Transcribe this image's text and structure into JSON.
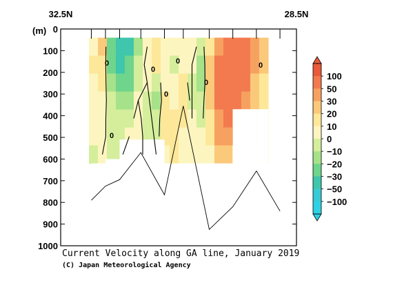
{
  "chart_data": {
    "type": "heatmap",
    "title": "Current Velocity along GA line, January 2019",
    "credit": "(C) Japan Meteorological Agency",
    "x_left_label": "32.5N",
    "x_right_label": "28.5N",
    "y_unit_label": "(m)",
    "ylim": [
      0,
      1000
    ],
    "y_inverted": true,
    "y_ticks": [
      "0",
      "100",
      "200",
      "300",
      "400",
      "500",
      "600",
      "700",
      "800",
      "900",
      "1000"
    ],
    "colorbar": {
      "labels": [
        "100",
        "50",
        "30",
        "20",
        "10",
        "0",
        "−10",
        "−20",
        "−30",
        "−50",
        "−100"
      ],
      "colors": [
        "#e85a3a",
        "#f27a4e",
        "#f7a161",
        "#fbc97a",
        "#fde89a",
        "#fdf5c0",
        "#d4ee9c",
        "#a6e28a",
        "#6fd48c",
        "#3fc6ac",
        "#37cbd7",
        "#2fd1e4"
      ]
    },
    "contour_labels": [
      "0",
      "0",
      "0",
      "0",
      "0",
      "0",
      "0"
    ],
    "stations_x_frac": [
      0.13,
      0.19,
      0.25,
      0.34,
      0.44,
      0.52,
      0.63,
      0.73,
      0.83,
      0.93
    ],
    "bottom_depth_m": [
      790,
      725,
      695,
      570,
      765,
      355,
      925,
      820,
      655,
      840
    ],
    "section_max_depth_m": [
      620,
      620,
      600,
      510,
      620,
      620,
      620,
      620,
      370,
      620
    ],
    "velocity_cm_s": [
      [
        5,
        20,
        -30,
        -50,
        -40,
        -15,
        0,
        15,
        5,
        2,
        8,
        5,
        -5,
        10,
        30,
        55,
        80,
        70,
        40,
        25
      ],
      [
        10,
        15,
        -25,
        -45,
        -30,
        -10,
        5,
        10,
        0,
        -5,
        5,
        0,
        -15,
        20,
        50,
        90,
        95,
        75,
        35,
        20
      ],
      [
        8,
        10,
        -15,
        -30,
        -25,
        -5,
        0,
        -5,
        5,
        0,
        10,
        -10,
        -20,
        25,
        60,
        85,
        80,
        60,
        25,
        15
      ],
      [
        5,
        8,
        -10,
        -20,
        -15,
        0,
        -5,
        -15,
        10,
        5,
        15,
        -5,
        -10,
        20,
        55,
        70,
        65,
        45,
        20,
        10
      ],
      [
        3,
        5,
        -8,
        -10,
        -5,
        5,
        -10,
        -10,
        15,
        10,
        10,
        0,
        -5,
        15,
        45,
        50,
        45,
        30,
        15,
        8
      ],
      [
        0,
        3,
        -5,
        -5,
        0,
        8,
        -8,
        -5,
        10,
        15,
        5,
        5,
        0,
        10,
        30,
        35,
        30,
        20,
        10,
        5
      ],
      [
        -2,
        0,
        -3,
        -2,
        5,
        5,
        -5,
        0,
        5,
        10,
        0,
        5,
        5,
        5,
        20,
        20,
        15,
        10,
        5,
        0
      ]
    ]
  }
}
